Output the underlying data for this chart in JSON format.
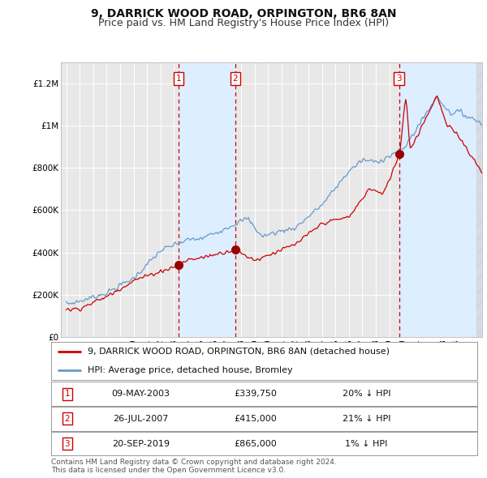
{
  "title": "9, DARRICK WOOD ROAD, ORPINGTON, BR6 8AN",
  "subtitle": "Price paid vs. HM Land Registry's House Price Index (HPI)",
  "ylim": [
    0,
    1300000
  ],
  "yticks": [
    0,
    200000,
    400000,
    600000,
    800000,
    1000000,
    1200000
  ],
  "ytick_labels": [
    "£0",
    "£200K",
    "£400K",
    "£600K",
    "£800K",
    "£1M",
    "£1.2M"
  ],
  "x_start_year": 1995,
  "x_end_year": 2025,
  "background_color": "#ffffff",
  "plot_bg_color": "#e8e8e8",
  "grid_color": "#ffffff",
  "hpi_line_color": "#6699cc",
  "price_line_color": "#cc0000",
  "sale_marker_color": "#990000",
  "purchase_box_color": "#cc0000",
  "shade_color": "#ddeeff",
  "sale_dates": [
    2003.36,
    2007.57,
    2019.72
  ],
  "sale_prices": [
    339750,
    415000,
    865000
  ],
  "sale_labels": [
    "1",
    "2",
    "3"
  ],
  "legend_label_price": "9, DARRICK WOOD ROAD, ORPINGTON, BR6 8AN (detached house)",
  "legend_label_hpi": "HPI: Average price, detached house, Bromley",
  "table_rows": [
    [
      "1",
      "09-MAY-2003",
      "£339,750",
      "20% ↓ HPI"
    ],
    [
      "2",
      "26-JUL-2007",
      "£415,000",
      "21% ↓ HPI"
    ],
    [
      "3",
      "20-SEP-2019",
      "£865,000",
      "1% ↓ HPI"
    ]
  ],
  "footer": "Contains HM Land Registry data © Crown copyright and database right 2024.\nThis data is licensed under the Open Government Licence v3.0.",
  "title_fontsize": 10,
  "subtitle_fontsize": 9,
  "tick_fontsize": 7.5,
  "legend_fontsize": 8,
  "table_fontsize": 8,
  "footer_fontsize": 6.5
}
